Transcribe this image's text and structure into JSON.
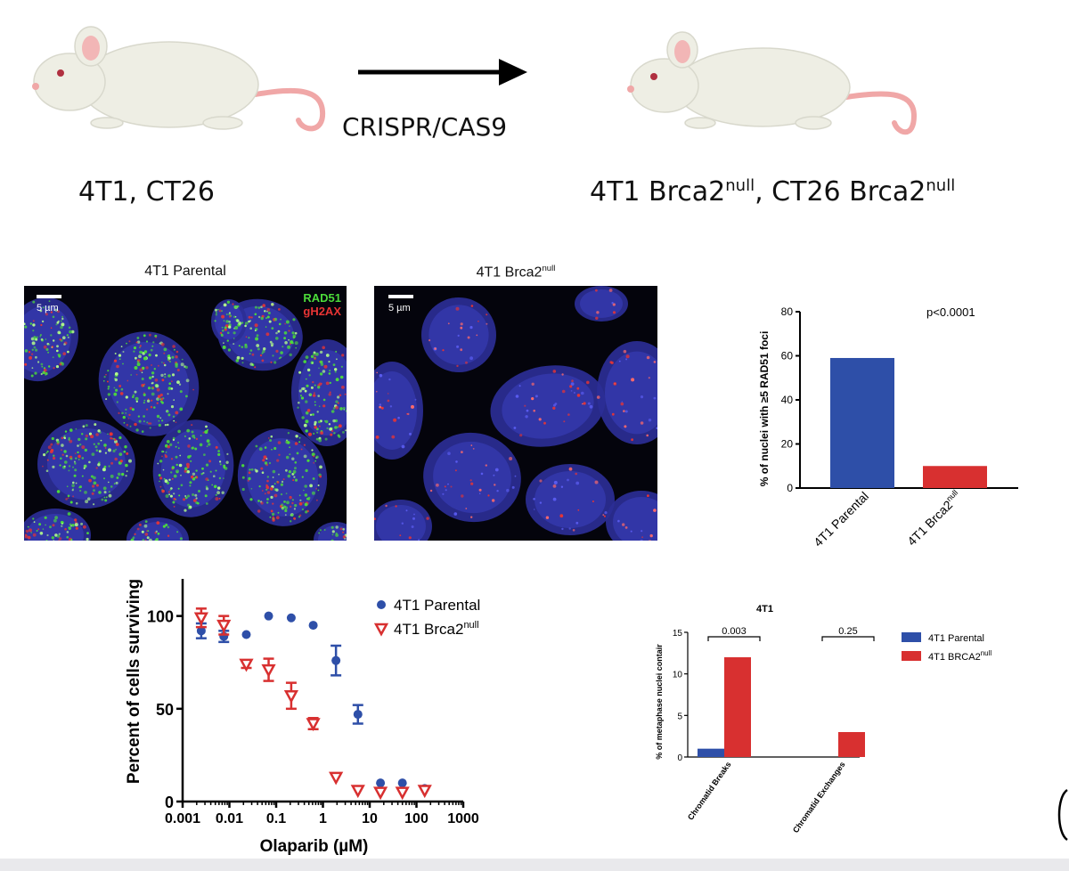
{
  "colors": {
    "blue": "#2e4fa8",
    "red": "#d83030",
    "stain_green": "#4cdc3a",
    "stain_red": "#e83434"
  },
  "schematic": {
    "arrow_label": "CRISPR/CAS9",
    "left_label": "4T1, CT26",
    "right_label_a": "4T1 Brca2",
    "right_label_sup_a": "null",
    "right_label_b": ", CT26 Brca2",
    "right_label_sup_b": "null"
  },
  "microscopy": {
    "left_title": "4T1 Parental",
    "right_title": "4T1 Brca2",
    "right_title_sup": "null",
    "scale_label": "5 µm",
    "stain_1": "RAD51",
    "stain_2": "gH2AX"
  },
  "chart_data": [
    {
      "id": "rad51_foci",
      "type": "bar",
      "categories": [
        "4T1 Parental",
        "4T1 Brca2null"
      ],
      "values": [
        59,
        10
      ],
      "ylabel": "% of nuclei with ≥5 RAD51 foci",
      "ylim": [
        0,
        80
      ],
      "yticks": [
        0,
        20,
        40,
        60,
        80
      ],
      "annotation": "p<0.0001",
      "grid": false
    },
    {
      "id": "olaparib_survival",
      "type": "scatter",
      "xscale": "log",
      "xlabel": "Olaparib (µM)",
      "ylabel": "Percent of cells surviving",
      "xlim": [
        0.001,
        1000
      ],
      "ylim": [
        0,
        120
      ],
      "xticks": [
        "0.001",
        "0.01",
        "0.1",
        "1",
        "10",
        "100",
        "1000"
      ],
      "yticks": [
        0,
        50,
        100
      ],
      "legend": "top-right",
      "series": [
        {
          "name": "4T1 Parental",
          "marker": "circle",
          "x": [
            0.0025,
            0.0076,
            0.023,
            0.069,
            0.21,
            0.62,
            1.9,
            5.6,
            17,
            50,
            150
          ],
          "y": [
            92,
            89,
            90,
            100,
            99,
            95,
            76,
            47,
            10,
            10,
            7
          ],
          "err": [
            4,
            3,
            0,
            0,
            0,
            0,
            8,
            5,
            0,
            0,
            0
          ]
        },
        {
          "name": "4T1 Brca2null",
          "marker": "triangle-down",
          "x": [
            0.0025,
            0.0076,
            0.023,
            0.069,
            0.21,
            0.62,
            1.9,
            5.6,
            17,
            50,
            150
          ],
          "y": [
            99,
            95,
            74,
            71,
            57,
            42,
            13,
            6,
            5,
            5,
            6
          ],
          "err": [
            5,
            5,
            2,
            6,
            7,
            3,
            0,
            0,
            0,
            0,
            0
          ]
        }
      ]
    },
    {
      "id": "metaphase",
      "type": "bar",
      "title": "4T1",
      "categories": [
        "Chromatid Breaks",
        "Chromatid Exchanges"
      ],
      "ylabel": "% of metaphase nuclei contair",
      "ylim": [
        0,
        15
      ],
      "yticks": [
        0,
        5,
        10,
        15
      ],
      "legend": "right",
      "series": [
        {
          "name": "4T1 Parental",
          "values": [
            1,
            0
          ]
        },
        {
          "name": "4T1 BRCA2null",
          "values": [
            12,
            3
          ]
        }
      ],
      "pvalues": [
        "0.003",
        "0.25"
      ]
    }
  ]
}
